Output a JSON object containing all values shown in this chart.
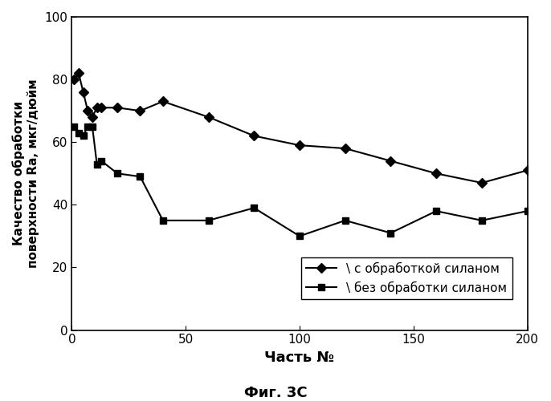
{
  "xlabel": "Часть №",
  "ylabel_line1": "Качество обработки",
  "ylabel_line2": "поверхности Ra, мкг/дюйм",
  "caption": "Фиг. 3C",
  "legend1": "\\ с обработкой силаном",
  "legend2": "\\ без обработки силаном",
  "xlim": [
    0,
    200
  ],
  "ylim": [
    0,
    100
  ],
  "xticks": [
    0,
    50,
    100,
    150,
    200
  ],
  "yticks": [
    0,
    20,
    40,
    60,
    80,
    100
  ],
  "series1_x": [
    1,
    3,
    5,
    7,
    9,
    11,
    13,
    20,
    30,
    40,
    60,
    80,
    100,
    120,
    140,
    160,
    180,
    200
  ],
  "series1_y": [
    80,
    82,
    76,
    70,
    68,
    71,
    71,
    71,
    70,
    73,
    68,
    62,
    59,
    58,
    54,
    50,
    47,
    51
  ],
  "series2_x": [
    1,
    3,
    5,
    7,
    9,
    11,
    13,
    20,
    30,
    40,
    60,
    80,
    100,
    120,
    140,
    160,
    180,
    200
  ],
  "series2_y": [
    65,
    63,
    62,
    65,
    65,
    53,
    54,
    50,
    49,
    35,
    35,
    39,
    30,
    35,
    31,
    38,
    35,
    38
  ],
  "line_color": "#000000",
  "bg_color": "#ffffff",
  "marker1": "D",
  "marker2": "s",
  "markersize": 6,
  "linewidth": 1.5
}
